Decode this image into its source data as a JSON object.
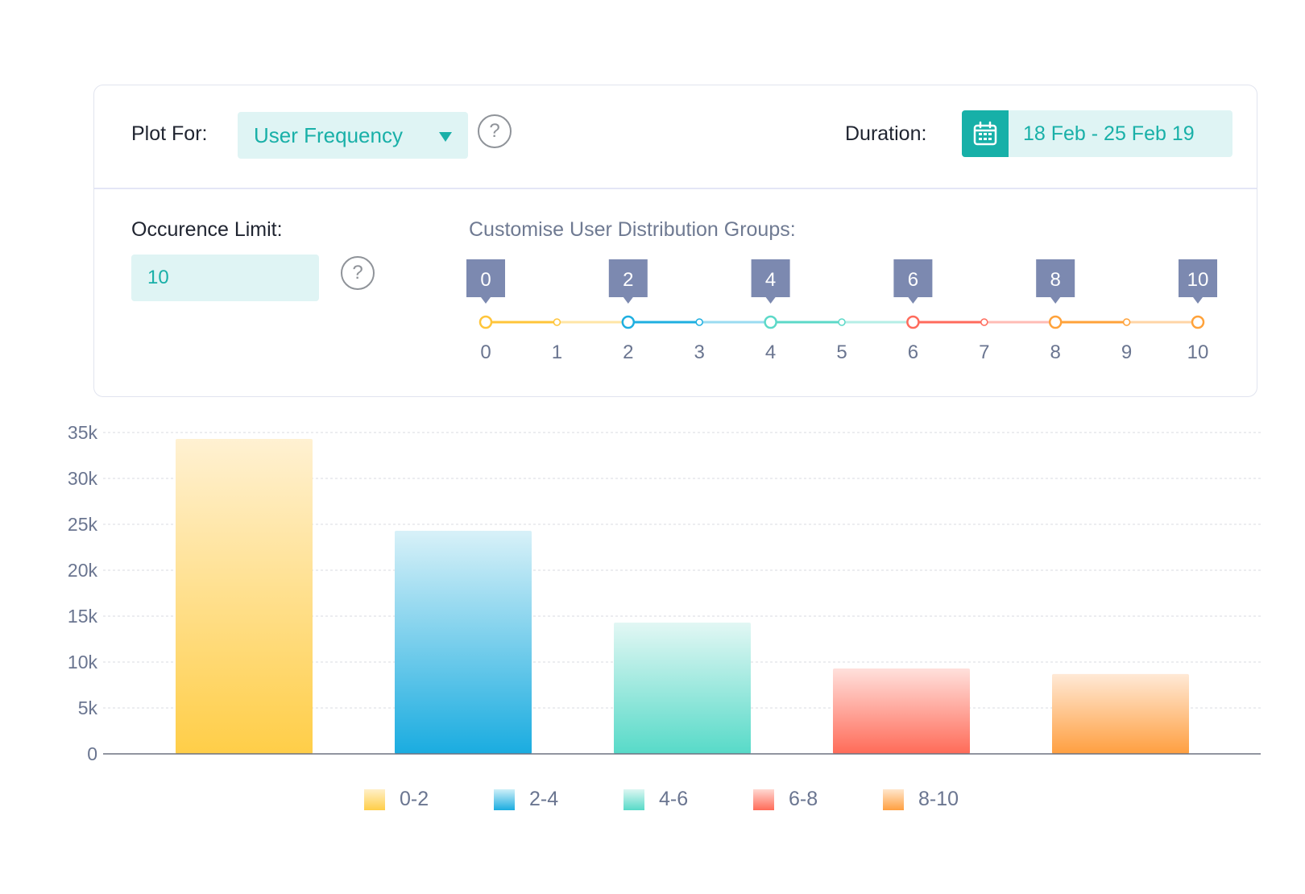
{
  "controls": {
    "plot_for_label": "Plot For:",
    "plot_for_value": "User Frequency",
    "duration_label": "Duration:",
    "duration_value": "18 Feb - 25 Feb 19",
    "occurrence_label": "Occurence Limit:",
    "occurrence_value": "10",
    "groups_title": "Customise User Distribution Groups:",
    "help_glyph": "?"
  },
  "slider": {
    "ticks": [
      "0",
      "1",
      "2",
      "3",
      "4",
      "5",
      "6",
      "7",
      "8",
      "9",
      "10"
    ],
    "handles": [
      0,
      2,
      4,
      6,
      8,
      10
    ],
    "segment_colors": [
      "#ffc53a",
      "#1fafe0",
      "#5cd9c8",
      "#ff6b5c",
      "#ffa23a"
    ],
    "handle_color": "#7c89b0"
  },
  "chart_data": {
    "type": "bar",
    "categories": [
      "0-2",
      "2-4",
      "4-6",
      "6-8",
      "8-10"
    ],
    "values": [
      34300,
      24300,
      14300,
      9300,
      8700
    ],
    "ylim": [
      0,
      35000
    ],
    "yticks": [
      "0",
      "5k",
      "10k",
      "15k",
      "20k",
      "25k",
      "30k",
      "35k"
    ],
    "grid": true,
    "legend_position": "bottom",
    "colors": [
      {
        "top": "#fff1d2",
        "bottom": "#ffce48"
      },
      {
        "top": "#d8f1f8",
        "bottom": "#1aace0"
      },
      {
        "top": "#e2f7f4",
        "bottom": "#57dac8"
      },
      {
        "top": "#ffe0dc",
        "bottom": "#ff6b58"
      },
      {
        "top": "#ffe9d6",
        "bottom": "#ff9f40"
      }
    ]
  }
}
